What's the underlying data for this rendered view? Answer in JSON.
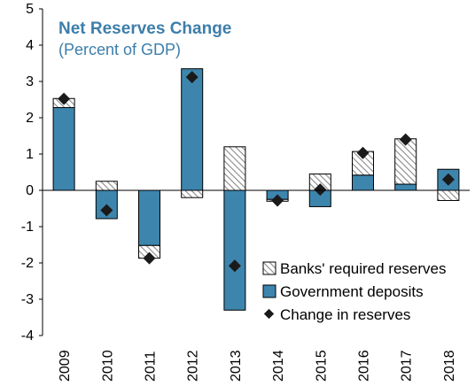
{
  "colors": {
    "gov_fill": "#3d85ad",
    "title": "#3d7eaa",
    "marker": "#1a1a1a",
    "hatch": "#8a8a8a"
  },
  "chart_data": {
    "type": "bar",
    "title": "Net Reserves Change",
    "subtitle": "(Percent of GDP)",
    "categories": [
      "2009",
      "2010",
      "2011",
      "2012",
      "2013",
      "2014",
      "2015",
      "2016",
      "2017",
      "2018"
    ],
    "ylim": [
      -4,
      5
    ],
    "yticks": [
      5,
      4,
      3,
      2,
      1,
      0,
      -1,
      -2,
      -3,
      -4
    ],
    "series": [
      {
        "name": "Banks' required reserves",
        "kind": "stacked-bar-hatched",
        "values": [
          0.25,
          0.25,
          -0.35,
          -0.2,
          1.2,
          -0.05,
          0.45,
          0.65,
          1.25,
          -0.28
        ]
      },
      {
        "name": "Government deposits",
        "kind": "stacked-bar",
        "values": [
          2.28,
          -0.78,
          -1.52,
          3.35,
          -3.3,
          -0.25,
          -0.45,
          0.42,
          0.17,
          0.58
        ]
      },
      {
        "name": "Change in reserves",
        "kind": "marker",
        "values": [
          2.52,
          -0.55,
          -1.87,
          3.12,
          -2.08,
          -0.28,
          0.02,
          1.03,
          1.4,
          0.3
        ]
      }
    ],
    "legend_position": "bottom-right",
    "grid": false
  }
}
